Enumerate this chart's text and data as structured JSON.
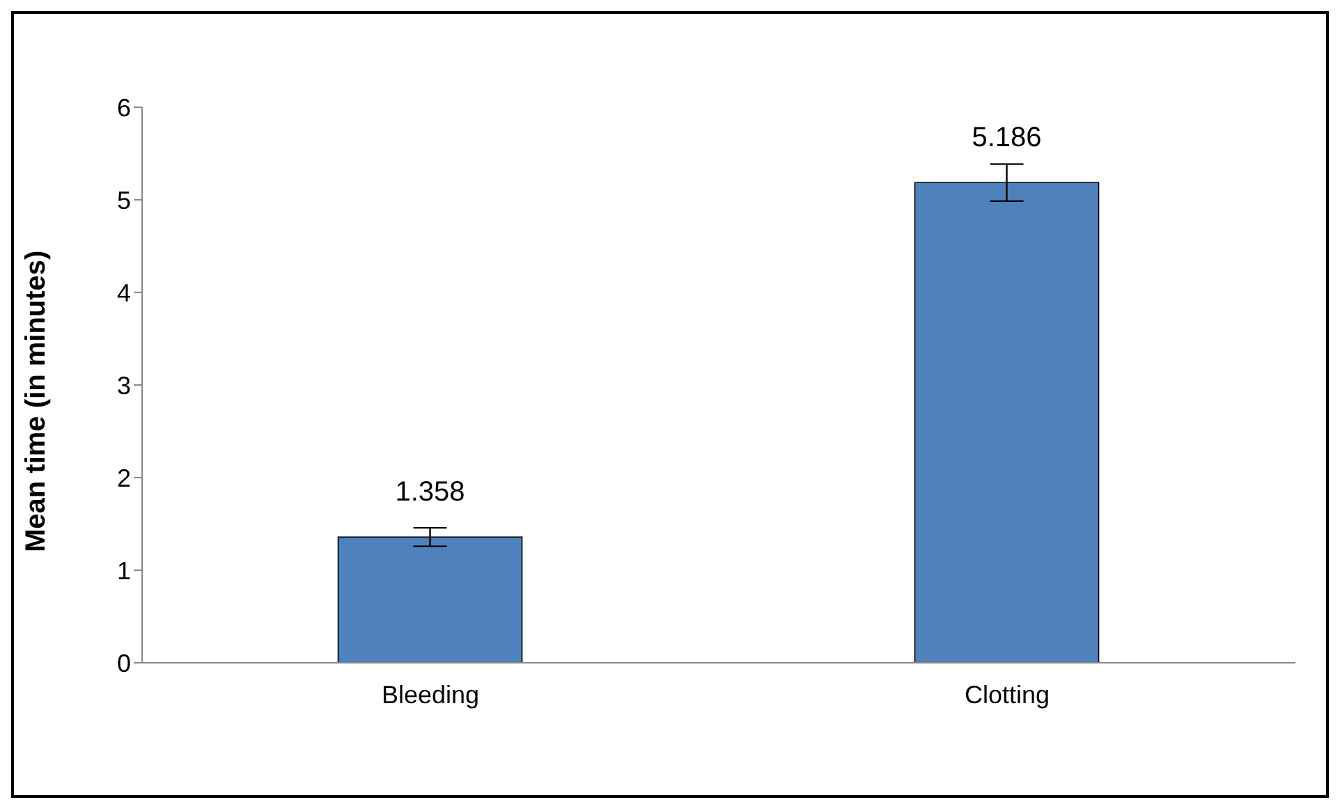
{
  "chart_data": {
    "type": "bar",
    "ylabel": "Mean time (in minutes)",
    "categories": [
      "Bleeding",
      "Clotting"
    ],
    "values": [
      1.358,
      5.186
    ],
    "errors": [
      0.1,
      0.2
    ],
    "color": "#4f81bd",
    "ylim": [
      0,
      6
    ],
    "yticks": [
      0,
      1,
      2,
      3,
      4,
      5,
      6
    ],
    "data_labels": true,
    "grid": false,
    "legend": false
  }
}
